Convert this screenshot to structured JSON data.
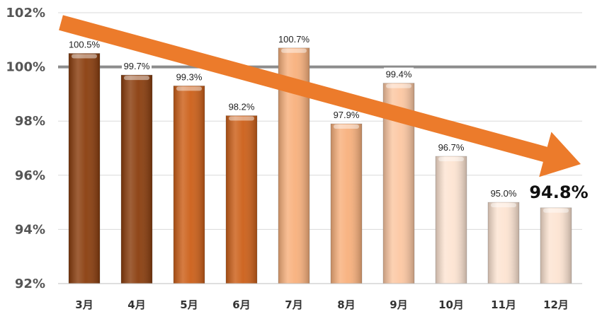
{
  "chart_data": {
    "type": "bar",
    "title": "",
    "xlabel": "",
    "ylabel": "",
    "categories": [
      "3月",
      "4月",
      "5月",
      "6月",
      "7月",
      "8月",
      "9月",
      "10月",
      "11月",
      "12月"
    ],
    "values": [
      100.5,
      99.7,
      99.3,
      98.2,
      100.7,
      97.9,
      99.4,
      96.7,
      95.0,
      94.8
    ],
    "data_labels": [
      "100.5%",
      "99.7%",
      "99.3%",
      "98.2%",
      "100.7%",
      "97.9%",
      "99.4%",
      "96.7%",
      "95.0%",
      "94.8%"
    ],
    "highlighted_label_index": 9,
    "ylim": [
      92,
      102
    ],
    "yticks": [
      92,
      94,
      96,
      98,
      100,
      102
    ],
    "ytick_labels": [
      "92%",
      "94%",
      "96%",
      "98%",
      "100%",
      "102%"
    ],
    "reference_line": 100,
    "grid": true,
    "bar_colors": [
      "#8a3d0d",
      "#8a3d0d",
      "#cc5f18",
      "#cc5f18",
      "#f8b07c",
      "#f8b07c",
      "#fcc7a2",
      "#fde4d2",
      "#fde4d2",
      "#fde4d2"
    ],
    "trend_arrow": {
      "color": "#ec7b2b",
      "direction": "down"
    }
  }
}
